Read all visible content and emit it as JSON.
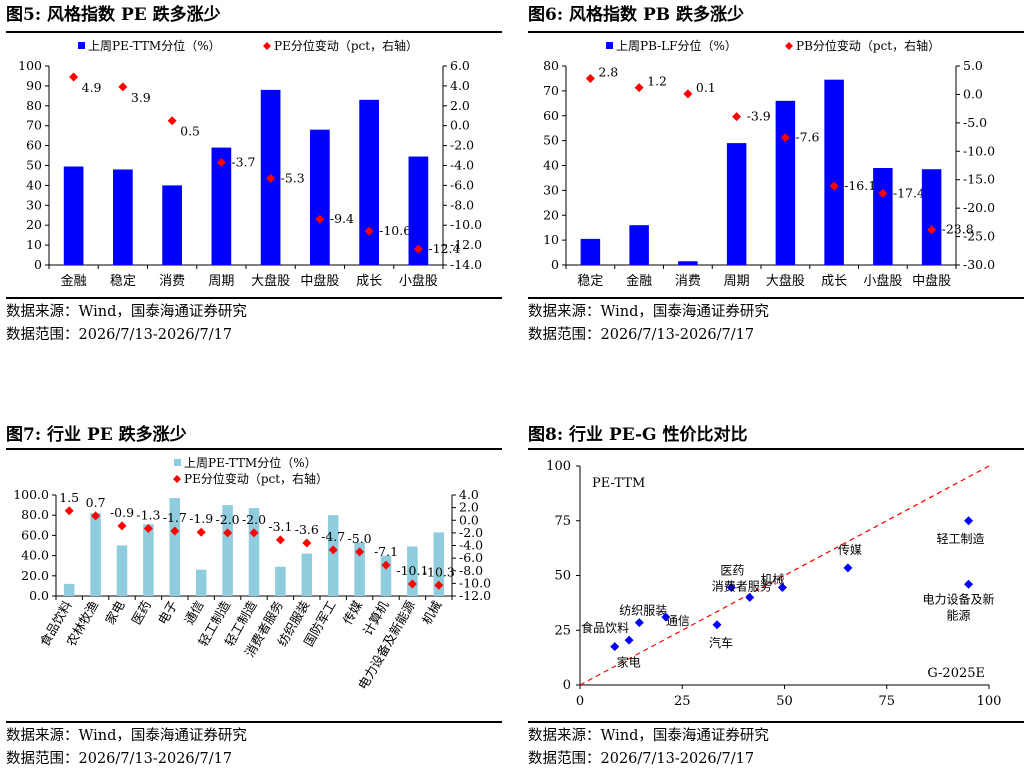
{
  "source_label": "数据来源：",
  "source_text": "Wind，国泰海通证券研究",
  "range_label": "数据范围：",
  "range_text": "2026/7/13-2026/7/17",
  "colors": {
    "bar_blue": "#0000FF",
    "bar_light": "#8FCCDD",
    "marker": "#FF0000",
    "dash": "#FF0000",
    "scatter": "#0000FF"
  },
  "fig5": {
    "title": "图5:  风格指数 PE 跌多涨少",
    "chart_data": {
      "type": "bar",
      "categories": [
        "金融",
        "稳定",
        "消费",
        "周期",
        "大盘股",
        "中盘股",
        "成长",
        "小盘股"
      ],
      "series": [
        {
          "name": "上周PE-TTM分位（%）",
          "type": "bar",
          "axis": "left",
          "values": [
            49.5,
            48,
            40,
            59,
            88,
            68,
            83,
            54.5
          ]
        },
        {
          "name": "PE分位变动（pct，右轴）",
          "type": "scatter",
          "axis": "right",
          "values": [
            4.9,
            3.9,
            0.5,
            -3.7,
            -5.3,
            -9.4,
            -10.6,
            -12.4
          ]
        }
      ],
      "ylim": [
        0,
        100
      ],
      "y_ticks": [
        0,
        10,
        20,
        30,
        40,
        50,
        60,
        70,
        80,
        90,
        100
      ],
      "y2lim": [
        -14,
        6
      ],
      "y2_ticks": [
        -14,
        -12,
        -10,
        -8,
        -6,
        -4,
        -2,
        0,
        2,
        4,
        6
      ],
      "tick_decimals": 0,
      "tick2_decimals": 1,
      "value_labels": [
        "4.9",
        "3.9",
        "0.5",
        "-3.7",
        "-5.3",
        "-9.4",
        "-10.6",
        "-12.4"
      ],
      "legend": "top"
    }
  },
  "fig6": {
    "title": "图6:  风格指数 PB 跌多涨少",
    "chart_data": {
      "type": "bar",
      "categories": [
        "稳定",
        "金融",
        "消费",
        "周期",
        "大盘股",
        "成长",
        "小盘股",
        "中盘股"
      ],
      "series": [
        {
          "name": "上周PB-LF分位（%）",
          "type": "bar",
          "axis": "left",
          "values": [
            10.5,
            16,
            1.5,
            49,
            66,
            74.5,
            39,
            38.5
          ]
        },
        {
          "name": "PB分位变动（pct，右轴）",
          "type": "scatter",
          "axis": "right",
          "values": [
            2.8,
            1.2,
            0.1,
            -3.9,
            -7.6,
            -16.1,
            -17.4,
            -23.8
          ]
        }
      ],
      "ylim": [
        0,
        80
      ],
      "y_ticks": [
        0,
        10,
        20,
        30,
        40,
        50,
        60,
        70,
        80
      ],
      "y2lim": [
        -30,
        5
      ],
      "y2_ticks": [
        -30,
        -25,
        -20,
        -15,
        -10,
        -5,
        0,
        5
      ],
      "tick_decimals": 0,
      "tick2_decimals": 1,
      "value_labels": [
        "2.8",
        "1.2",
        "0.1",
        "-3.9",
        "-7.6",
        "-16.1",
        "-17.4",
        "-23.8"
      ],
      "legend": "top"
    }
  },
  "fig7": {
    "title": "图7:  行业 PE 跌多涨少",
    "chart_data": {
      "type": "bar",
      "categories": [
        "食品饮料",
        "农林牧渔",
        "家电",
        "医药",
        "电子",
        "通信",
        "轻工制造",
        "轻工制造",
        "消费者服务",
        "纺织服装",
        "国防军工",
        "传媒",
        "计算机",
        "电力设备及新能源",
        "机械"
      ],
      "series": [
        {
          "name": "上周PE-TTM分位（%）",
          "type": "bar",
          "axis": "left",
          "values": [
            12,
            82,
            50,
            71,
            97,
            26,
            90,
            87,
            29,
            42,
            80,
            53,
            40,
            49,
            63
          ]
        },
        {
          "name": "PE分位变动（pct，右轴）",
          "type": "scatter",
          "axis": "right",
          "values": [
            1.5,
            0.7,
            -0.9,
            -1.3,
            -1.7,
            -1.9,
            -2.0,
            -2.0,
            -3.1,
            -3.6,
            -4.7,
            -5.0,
            -7.1,
            -10.1,
            -10.3
          ]
        }
      ],
      "ylim": [
        0,
        100
      ],
      "y_ticks": [
        0,
        20,
        40,
        60,
        80,
        100
      ],
      "y2lim": [
        -12,
        4
      ],
      "y2_ticks": [
        -12,
        -10,
        -8,
        -6,
        -4,
        -2,
        0,
        2,
        4
      ],
      "tick_decimals": 1,
      "tick2_decimals": 1,
      "value_labels": [
        "1.5",
        "0.7",
        "-0.9",
        "-1.3",
        "-1.7",
        "-1.9",
        "-2.0",
        "-2.0",
        "-3.1",
        "-3.6",
        "-4.7",
        "-5.0",
        "-7.1",
        "-10.1",
        "-10.3"
      ],
      "legend": "top"
    }
  },
  "fig8": {
    "title": "图8:  行业 PE-G 性价比对比",
    "chart_data": {
      "type": "scatter",
      "ylabel": "PE-TTM",
      "xlabel": "G-2025E",
      "xlim": [
        0,
        100
      ],
      "x_ticks": [
        0,
        25,
        50,
        75,
        100
      ],
      "ylim": [
        0,
        100
      ],
      "y_ticks": [
        0,
        25,
        50,
        75,
        100
      ],
      "points": [
        {
          "x": 8.5,
          "y": 17.5,
          "label": "家电"
        },
        {
          "x": 12,
          "y": 20.5,
          "label": "食品饮料"
        },
        {
          "x": 14.5,
          "y": 28.5,
          "label": "纺织服装"
        },
        {
          "x": 21,
          "y": 31,
          "label": "通信"
        },
        {
          "x": 33.5,
          "y": 27.5,
          "label": "汽车"
        },
        {
          "x": 37,
          "y": 44.5,
          "label": "医药"
        },
        {
          "x": 41.5,
          "y": 40,
          "label": "消费者服务"
        },
        {
          "x": 49.5,
          "y": 44.5,
          "label": "机械"
        },
        {
          "x": 65.5,
          "y": 53.5,
          "label": "传媒"
        },
        {
          "x": 95,
          "y": 75,
          "label": "轻工制造"
        },
        {
          "x": 95,
          "y": 46,
          "label": "电力设备及新能源"
        }
      ],
      "reference_line": "y = x (red dashed)",
      "legend": "none"
    }
  }
}
